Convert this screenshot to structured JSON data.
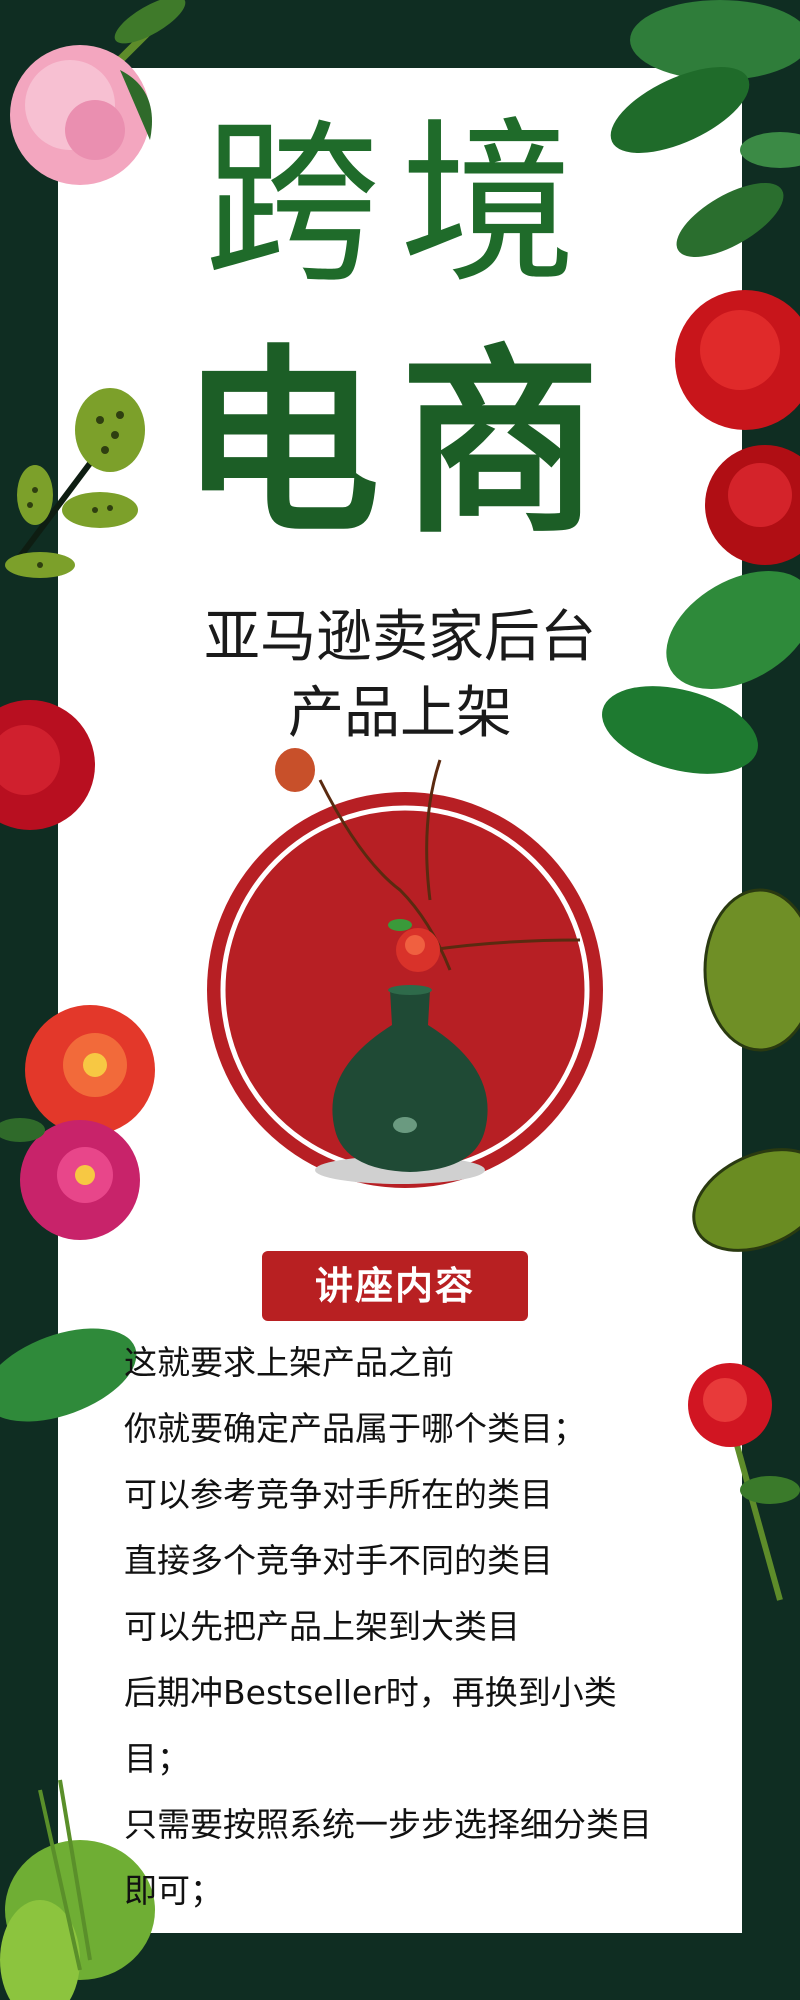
{
  "title": {
    "line1": "跨境",
    "line2": "电商"
  },
  "subtitle": {
    "line1": "亚马逊卖家后台",
    "line2": "产品上架"
  },
  "section_badge": "讲座内容",
  "content_lines": [
    "这就要求上架产品之前",
    "你就要确定产品属于哪个类目；",
    "可以参考竞争对手所在的类目",
    "直接多个竞争对手不同的类目",
    "可以先把产品上架到大类目",
    "后期冲Bestseller时，再换到小类",
    "目；",
    "只需要按照系统一步步选择细分类目",
    "即可；"
  ],
  "colors": {
    "background": "#0f2d22",
    "title_green": "#1f6b2a",
    "accent_red": "#b82022"
  }
}
